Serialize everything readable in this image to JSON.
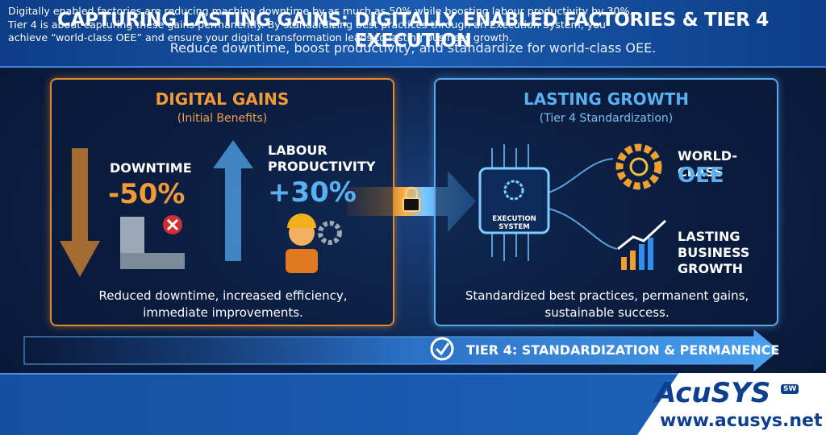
{
  "header": {
    "title": "CAPTURING LASTING GAINS: DIGITALLY ENABLED FACTORIES & TIER 4 EXECUTION",
    "subtitle": "Reduce downtime, boost productivity, and standardize for world-class OEE."
  },
  "left_panel": {
    "title": "DIGITAL GAINS",
    "subtitle": "(Initial Benefits)",
    "metrics": [
      {
        "label": "DOWNTIME",
        "value": "-50%"
      },
      {
        "label": "LABOUR PRODUCTIVITY",
        "value": "+30%"
      }
    ],
    "description": "Reduced downtime, increased efficiency, immediate improvements."
  },
  "right_panel": {
    "title": "LASTING GROWTH",
    "subtitle": "(Tier 4 Standardization)",
    "chip": "EXECUTION SYSTEM",
    "outcomes": [
      {
        "label": "WORLD-CLASS",
        "emphasis": "OEE"
      },
      {
        "label": "LASTING BUSINESS GROWTH"
      }
    ],
    "description": "Standardized best practices, permanent gains, sustainable success."
  },
  "banner": "TIER 4: STANDARDIZATION & PERMANENCE",
  "footer": {
    "text": "Digitally enabled factories are reducing machine downtime by as much as 50% while boosting labour productivity by 30%. Tier 4 is about capturing these gains permanently. By standardizing best practices through an Execution System, you achieve “world-class OEE” and ensure your digital transformation leads to lasting business growth.",
    "logo": "AcuSYS",
    "logo_badge": "SW",
    "url": "www.acusys.net"
  }
}
